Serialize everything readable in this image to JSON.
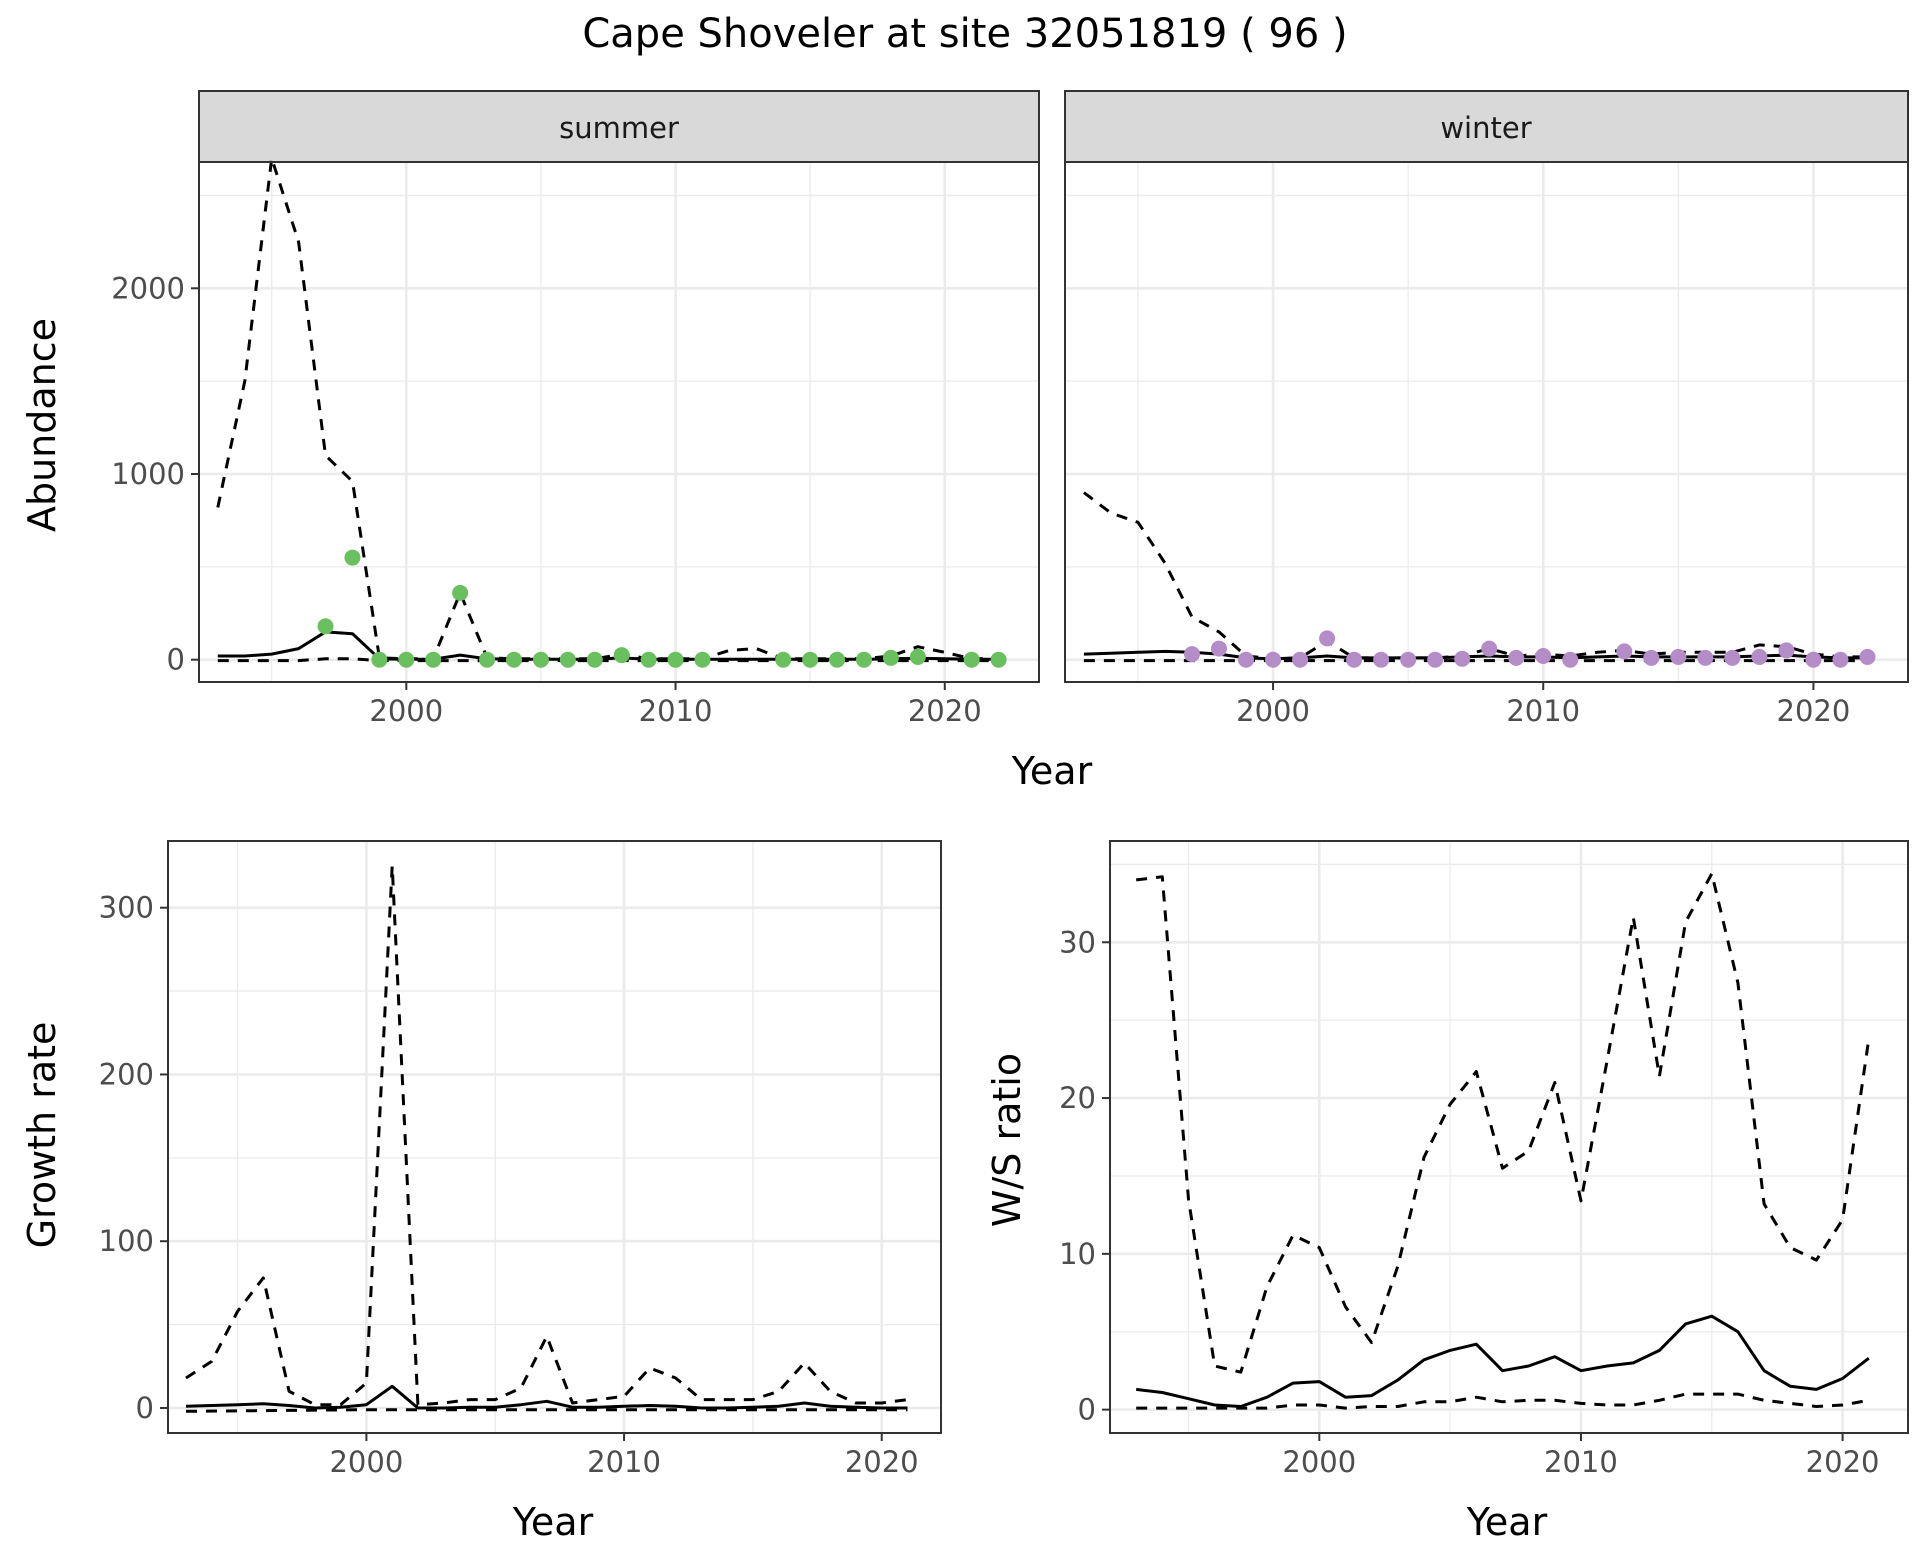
{
  "title": "Cape Shoveler at site 32051819 ( 96 )",
  "colors": {
    "summer_points": "#6abf5e",
    "winter_points": "#b48cc8",
    "lines": "#000000",
    "strip": "#d9d9d9",
    "grid": "#ebebeb"
  },
  "chart_data": [
    {
      "id": "abundance",
      "type": "line",
      "ylabel": "Abundance",
      "xlabel": "Year",
      "xlim": [
        1992.3,
        2023.5
      ],
      "ylim": [
        -120,
        2680
      ],
      "xticks": [
        2000,
        2010,
        2020
      ],
      "yticks": [
        0,
        1000,
        2000
      ],
      "grid": true,
      "panels": [
        {
          "strip": "summer",
          "point_color": "#6abf5e",
          "series": [
            {
              "style": "solid",
              "x": [
                1993,
                1994,
                1995,
                1996,
                1997,
                1998,
                1999,
                2000,
                2001,
                2002,
                2003,
                2004,
                2005,
                2006,
                2007,
                2008,
                2009,
                2010,
                2011,
                2012,
                2013,
                2014,
                2015,
                2016,
                2017,
                2018,
                2019,
                2020,
                2021,
                2022
              ],
              "values": [
                20,
                20,
                30,
                60,
                150,
                140,
                5,
                3,
                3,
                25,
                5,
                3,
                3,
                3,
                3,
                10,
                3,
                3,
                3,
                3,
                3,
                3,
                3,
                3,
                3,
                5,
                8,
                5,
                3,
                3
              ]
            },
            {
              "style": "dashed",
              "x": [
                1993,
                1994,
                1995,
                1996,
                1997,
                1998,
                1999,
                2000,
                2001,
                2002,
                2003,
                2004,
                2005,
                2006,
                2007,
                2008,
                2009,
                2010,
                2011,
                2012,
                2013,
                2014,
                2015,
                2016,
                2017,
                2018,
                2019,
                2020,
                2021,
                2022
              ],
              "values": [
                820,
                1500,
                2700,
                2250,
                1100,
                960,
                10,
                5,
                5,
                360,
                10,
                5,
                5,
                5,
                5,
                30,
                5,
                5,
                5,
                50,
                60,
                5,
                5,
                5,
                5,
                20,
                70,
                40,
                5,
                5
              ]
            },
            {
              "style": "dashed",
              "x": [
                1993,
                1996,
                1997,
                1998,
                1999,
                2005,
                2010,
                2015,
                2022
              ],
              "values": [
                -5,
                -5,
                5,
                5,
                -5,
                -5,
                -5,
                -5,
                -5
              ]
            }
          ],
          "points": {
            "x": [
              1997,
              1998,
              1999,
              2000,
              2001,
              2002,
              2003,
              2004,
              2005,
              2006,
              2007,
              2008,
              2009,
              2010,
              2011,
              2014,
              2015,
              2016,
              2017,
              2018,
              2019,
              2021,
              2022
            ],
            "values": [
              180,
              550,
              0,
              0,
              0,
              360,
              0,
              0,
              0,
              0,
              0,
              25,
              0,
              0,
              0,
              0,
              0,
              0,
              0,
              10,
              15,
              0,
              0
            ]
          }
        },
        {
          "strip": "winter",
          "point_color": "#b48cc8",
          "series": [
            {
              "style": "solid",
              "x": [
                1993,
                1994,
                1995,
                1996,
                1997,
                1998,
                1999,
                2000,
                2001,
                2002,
                2003,
                2004,
                2005,
                2006,
                2007,
                2008,
                2009,
                2010,
                2011,
                2012,
                2013,
                2014,
                2015,
                2016,
                2017,
                2018,
                2019,
                2020,
                2021,
                2022
              ],
              "values": [
                30,
                35,
                40,
                45,
                40,
                30,
                10,
                5,
                10,
                20,
                10,
                10,
                10,
                10,
                15,
                20,
                15,
                15,
                10,
                15,
                20,
                15,
                15,
                15,
                15,
                20,
                25,
                15,
                10,
                10
              ]
            },
            {
              "style": "dashed",
              "x": [
                1993,
                1994,
                1995,
                1996,
                1997,
                1998,
                1999,
                2000,
                2001,
                2002,
                2003,
                2004,
                2005,
                2006,
                2007,
                2008,
                2009,
                2010,
                2011,
                2012,
                2013,
                2014,
                2015,
                2016,
                2017,
                2018,
                2019,
                2020,
                2021,
                2022
              ],
              "values": [
                900,
                790,
                740,
                520,
                230,
                150,
                20,
                5,
                10,
                100,
                10,
                10,
                10,
                10,
                20,
                60,
                20,
                30,
                20,
                40,
                50,
                30,
                40,
                40,
                40,
                80,
                70,
                30,
                15,
                15
              ]
            },
            {
              "style": "dashed",
              "x": [
                1993,
                2000,
                2005,
                2010,
                2015,
                2022
              ],
              "values": [
                -5,
                -5,
                -5,
                -5,
                -5,
                -5
              ]
            }
          ],
          "points": {
            "x": [
              1997,
              1998,
              1999,
              2000,
              2001,
              2002,
              2003,
              2004,
              2005,
              2006,
              2007,
              2008,
              2009,
              2010,
              2011,
              2013,
              2014,
              2015,
              2016,
              2017,
              2018,
              2019,
              2020,
              2021,
              2022
            ],
            "values": [
              30,
              60,
              0,
              0,
              0,
              115,
              0,
              0,
              0,
              0,
              5,
              60,
              10,
              20,
              0,
              45,
              10,
              15,
              10,
              10,
              15,
              50,
              0,
              0,
              15
            ]
          }
        }
      ]
    },
    {
      "id": "growth",
      "type": "line",
      "ylabel": "Growth rate",
      "xlabel": "Year",
      "xlim": [
        1992.3,
        2022.3
      ],
      "ylim": [
        -15,
        340
      ],
      "xticks": [
        2000,
        2010,
        2020
      ],
      "yticks": [
        0,
        100,
        200,
        300
      ],
      "grid": true,
      "series": [
        {
          "style": "solid",
          "x": [
            1993,
            1994,
            1995,
            1996,
            1997,
            1998,
            1999,
            2000,
            2001,
            2002,
            2003,
            2004,
            2005,
            2006,
            2007,
            2008,
            2009,
            2010,
            2011,
            2012,
            2013,
            2014,
            2015,
            2016,
            2017,
            2018,
            2019,
            2020,
            2021
          ],
          "values": [
            1,
            1.5,
            2,
            2.5,
            1.5,
            0,
            0.5,
            2,
            13,
            0,
            0,
            0.5,
            0.5,
            2,
            4,
            0.5,
            0.5,
            1,
            1.5,
            1,
            0,
            0,
            0.5,
            1,
            3,
            1,
            0.5,
            0,
            0
          ]
        },
        {
          "style": "dashed",
          "x": [
            1993,
            1994,
            1995,
            1996,
            1997,
            1998,
            1999,
            2000,
            2001,
            2002,
            2003,
            2004,
            2005,
            2006,
            2007,
            2008,
            2009,
            2010,
            2011,
            2012,
            2013,
            2014,
            2015,
            2016,
            2017,
            2018,
            2019,
            2020,
            2021
          ],
          "values": [
            18,
            28,
            58,
            78,
            10,
            2,
            2,
            15,
            325,
            2,
            3,
            5,
            5,
            12,
            43,
            3,
            5,
            7,
            24,
            18,
            5,
            5,
            5,
            10,
            27,
            10,
            3,
            3,
            5
          ]
        },
        {
          "style": "dashed",
          "x": [
            1993,
            2000,
            2010,
            2021
          ],
          "values": [
            -2,
            -1,
            -1,
            -1
          ]
        }
      ]
    },
    {
      "id": "ws_ratio",
      "type": "line",
      "ylabel": "W/S ratio",
      "xlabel": "Year",
      "xlim": [
        1992.0,
        2022.5
      ],
      "ylim": [
        -1.5,
        36.5
      ],
      "xticks": [
        2000,
        2010,
        2020
      ],
      "yticks": [
        0,
        10,
        20,
        30
      ],
      "grid": true,
      "series": [
        {
          "style": "solid",
          "x": [
            1993,
            1994,
            1995,
            1996,
            1997,
            1998,
            1999,
            2000,
            2001,
            2002,
            2003,
            2004,
            2005,
            2006,
            2007,
            2008,
            2009,
            2010,
            2011,
            2012,
            2013,
            2014,
            2015,
            2016,
            2017,
            2018,
            2019,
            2020,
            2021
          ],
          "values": [
            1.3,
            1.1,
            0.7,
            0.3,
            0.2,
            0.8,
            1.7,
            1.8,
            0.8,
            0.9,
            1.9,
            3.2,
            3.8,
            4.2,
            2.5,
            2.8,
            3.4,
            2.5,
            2.8,
            3.0,
            3.8,
            5.5,
            6.0,
            5.0,
            2.5,
            1.5,
            1.3,
            2.0,
            3.3
          ]
        },
        {
          "style": "dashed",
          "x": [
            1993,
            1994,
            1995,
            1996,
            1997,
            1998,
            1999,
            2000,
            2001,
            2002,
            2003,
            2004,
            2005,
            2006,
            2007,
            2008,
            2009,
            2010,
            2011,
            2012,
            2013,
            2014,
            2015,
            2016,
            2017,
            2018,
            2019,
            2020,
            2021
          ],
          "values": [
            34,
            34.2,
            13.5,
            2.8,
            2.4,
            7.9,
            11.2,
            10.4,
            6.6,
            4.3,
            9.2,
            16.2,
            19.6,
            21.7,
            15.5,
            16.6,
            21.0,
            13.4,
            22.4,
            31.6,
            21.4,
            31.3,
            34.4,
            27.4,
            13.2,
            10.4,
            9.6,
            12.2,
            23.8
          ]
        },
        {
          "style": "dashed",
          "x": [
            1993,
            1994,
            1995,
            1996,
            1997,
            1998,
            1999,
            2000,
            2001,
            2002,
            2003,
            2004,
            2005,
            2006,
            2007,
            2008,
            2009,
            2010,
            2011,
            2012,
            2013,
            2014,
            2015,
            2016,
            2017,
            2018,
            2019,
            2020,
            2021
          ],
          "values": [
            0.1,
            0.1,
            0.1,
            0.1,
            0.1,
            0.1,
            0.3,
            0.3,
            0.1,
            0.2,
            0.2,
            0.5,
            0.5,
            0.8,
            0.5,
            0.6,
            0.6,
            0.4,
            0.3,
            0.3,
            0.6,
            1.0,
            1.0,
            1.0,
            0.6,
            0.4,
            0.2,
            0.3,
            0.6
          ]
        }
      ]
    }
  ]
}
